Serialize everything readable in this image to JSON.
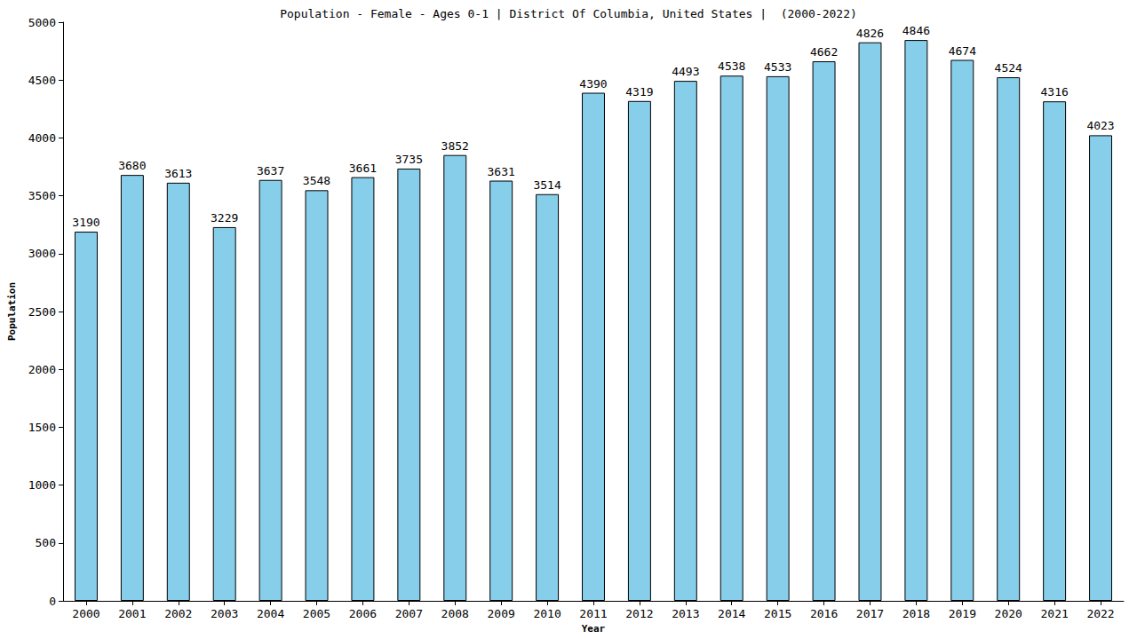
{
  "chart_data": {
    "type": "bar",
    "title": "Population - Female - Ages 0-1 | District Of Columbia, United States |  (2000-2022)",
    "x_label": "Year",
    "y_label": "Population",
    "categories": [
      "2000",
      "2001",
      "2002",
      "2003",
      "2004",
      "2005",
      "2006",
      "2007",
      "2008",
      "2009",
      "2010",
      "2011",
      "2012",
      "2013",
      "2014",
      "2015",
      "2016",
      "2017",
      "2018",
      "2019",
      "2020",
      "2021",
      "2022"
    ],
    "values": [
      3190,
      3680,
      3613,
      3229,
      3637,
      3548,
      3661,
      3735,
      3852,
      3631,
      3514,
      4390,
      4319,
      4493,
      4538,
      4533,
      4662,
      4826,
      4846,
      4674,
      4524,
      4316,
      4023
    ],
    "color": "#87ceeb",
    "ylim": [
      0,
      5000
    ],
    "yticks": [
      0,
      500,
      1000,
      1500,
      2000,
      2500,
      3000,
      3500,
      4000,
      4500,
      5000
    ],
    "grid": false,
    "data_labels": true
  }
}
